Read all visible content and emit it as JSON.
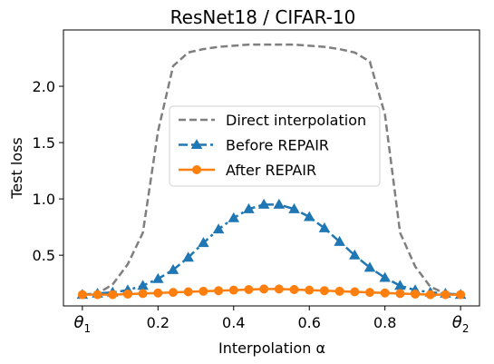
{
  "chart_data": {
    "type": "line",
    "title": "ResNet18 / CIFAR-10",
    "xlabel": "Interpolation α",
    "ylabel": "Test loss",
    "xlim": [
      -0.05,
      1.05
    ],
    "ylim": [
      0.05,
      2.5
    ],
    "x_ticks": [
      {
        "value": 0.0,
        "base": "θ",
        "sub": "1"
      },
      {
        "value": 0.2,
        "label": "0.2"
      },
      {
        "value": 0.4,
        "label": "0.4"
      },
      {
        "value": 0.6,
        "label": "0.6"
      },
      {
        "value": 0.8,
        "label": "0.8"
      },
      {
        "value": 1.0,
        "base": "θ",
        "sub": "2"
      }
    ],
    "y_ticks": [
      {
        "value": 0.5,
        "label": "0.5"
      },
      {
        "value": 1.0,
        "label": "1.0"
      },
      {
        "value": 1.5,
        "label": "1.5"
      },
      {
        "value": 2.0,
        "label": "2.0"
      }
    ],
    "legend_position": "center",
    "series": [
      {
        "name": "Direct interpolation",
        "color": "#7f7f7f",
        "style": "dashed",
        "marker": "none",
        "x": [
          0.0,
          0.04,
          0.08,
          0.12,
          0.16,
          0.2,
          0.24,
          0.28,
          0.32,
          0.36,
          0.4,
          0.44,
          0.48,
          0.52,
          0.56,
          0.6,
          0.64,
          0.68,
          0.72,
          0.76,
          0.8,
          0.84,
          0.88,
          0.92,
          0.96,
          1.0
        ],
        "values": [
          0.15,
          0.16,
          0.24,
          0.42,
          0.7,
          1.6,
          2.18,
          2.3,
          2.33,
          2.35,
          2.36,
          2.37,
          2.37,
          2.37,
          2.37,
          2.36,
          2.35,
          2.33,
          2.3,
          2.22,
          1.75,
          0.7,
          0.4,
          0.22,
          0.16,
          0.15
        ]
      },
      {
        "name": "Before REPAIR",
        "color": "#1f77b4",
        "style": "dashdot",
        "marker": "triangle",
        "x": [
          0.0,
          0.04,
          0.08,
          0.12,
          0.16,
          0.2,
          0.24,
          0.28,
          0.32,
          0.36,
          0.4,
          0.44,
          0.48,
          0.52,
          0.56,
          0.6,
          0.64,
          0.68,
          0.72,
          0.76,
          0.8,
          0.84,
          0.88,
          0.92,
          0.96,
          1.0
        ],
        "values": [
          0.15,
          0.16,
          0.17,
          0.19,
          0.23,
          0.29,
          0.37,
          0.48,
          0.61,
          0.73,
          0.83,
          0.91,
          0.95,
          0.95,
          0.91,
          0.84,
          0.74,
          0.62,
          0.5,
          0.39,
          0.3,
          0.23,
          0.19,
          0.17,
          0.16,
          0.15
        ]
      },
      {
        "name": "After REPAIR",
        "color": "#ff7f0e",
        "style": "solid",
        "marker": "circle",
        "x": [
          0.0,
          0.04,
          0.08,
          0.12,
          0.16,
          0.2,
          0.24,
          0.28,
          0.32,
          0.36,
          0.4,
          0.44,
          0.48,
          0.52,
          0.56,
          0.6,
          0.64,
          0.68,
          0.72,
          0.76,
          0.8,
          0.84,
          0.88,
          0.92,
          0.96,
          1.0
        ],
        "values": [
          0.15,
          0.15,
          0.15,
          0.155,
          0.16,
          0.165,
          0.17,
          0.175,
          0.18,
          0.185,
          0.19,
          0.195,
          0.2,
          0.2,
          0.195,
          0.19,
          0.185,
          0.18,
          0.175,
          0.17,
          0.165,
          0.16,
          0.155,
          0.15,
          0.15,
          0.15
        ]
      }
    ]
  }
}
